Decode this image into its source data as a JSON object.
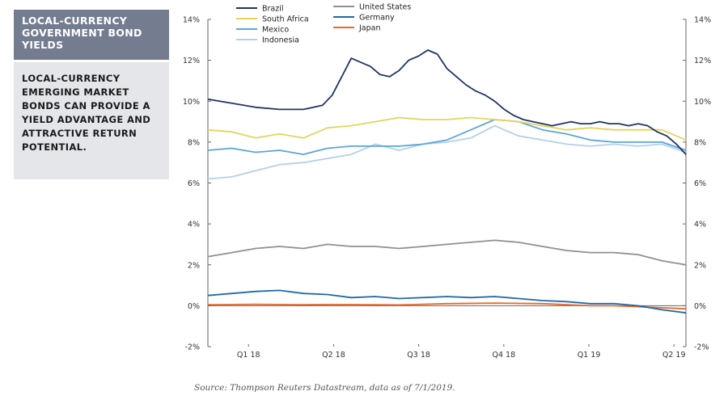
{
  "sidebar": {
    "title": "LOCAL-CURRENCY\nGOVERNMENT BOND\nYIELDS",
    "description": "LOCAL-CURRENCY\nEMERGING MARKET\nBONDS CAN PROVIDE A\nYIELD ADVANTAGE AND\nATTRACTIVE RETURN\nPOTENTIAL."
  },
  "source": "Source: Thompson Reuters Datastream, data as of 7/1/2019.",
  "chart_data": {
    "type": "line",
    "title": "",
    "xlabel": "",
    "ylabel": "",
    "ylim": [
      -2,
      14
    ],
    "y_ticks": [
      "-2%",
      "0%",
      "2%",
      "4%",
      "6%",
      "8%",
      "10%",
      "12%",
      "14%"
    ],
    "y_tick_values": [
      -2,
      0,
      2,
      4,
      6,
      8,
      10,
      12,
      14
    ],
    "x_tick_labels": [
      "Q1 18",
      "Q2 18",
      "Q3 18",
      "Q4 18",
      "Q1 19",
      "Q2 19"
    ],
    "xlim": [
      0,
      1
    ],
    "grid": false,
    "legend": "top",
    "series": [
      {
        "name": "Brazil",
        "color": "#1f3563",
        "x": [
          0,
          0.05,
          0.1,
          0.15,
          0.2,
          0.24,
          0.26,
          0.28,
          0.3,
          0.32,
          0.34,
          0.36,
          0.38,
          0.4,
          0.42,
          0.44,
          0.46,
          0.48,
          0.5,
          0.52,
          0.54,
          0.56,
          0.58,
          0.6,
          0.62,
          0.64,
          0.66,
          0.68,
          0.7,
          0.72,
          0.74,
          0.76,
          0.78,
          0.8,
          0.82,
          0.84,
          0.86,
          0.88,
          0.9,
          0.92,
          0.94,
          0.96,
          0.98,
          1.0
        ],
        "values": [
          10.1,
          9.9,
          9.7,
          9.6,
          9.6,
          9.8,
          10.3,
          11.2,
          12.1,
          11.9,
          11.7,
          11.3,
          11.2,
          11.5,
          12.0,
          12.2,
          12.5,
          12.3,
          11.6,
          11.2,
          10.8,
          10.5,
          10.3,
          10.0,
          9.6,
          9.3,
          9.1,
          9.0,
          8.9,
          8.8,
          8.9,
          9.0,
          8.9,
          8.9,
          9.0,
          8.9,
          8.9,
          8.8,
          8.9,
          8.8,
          8.5,
          8.3,
          7.9,
          7.4
        ]
      },
      {
        "name": "South Africa",
        "color": "#e3d55a",
        "x": [
          0,
          0.05,
          0.1,
          0.15,
          0.2,
          0.25,
          0.3,
          0.35,
          0.4,
          0.45,
          0.5,
          0.55,
          0.6,
          0.65,
          0.7,
          0.75,
          0.8,
          0.85,
          0.9,
          0.95,
          1.0
        ],
        "values": [
          8.6,
          8.5,
          8.2,
          8.4,
          8.2,
          8.7,
          8.8,
          9.0,
          9.2,
          9.1,
          9.1,
          9.2,
          9.1,
          9.0,
          8.8,
          8.6,
          8.7,
          8.6,
          8.6,
          8.6,
          8.1
        ]
      },
      {
        "name": "Mexico",
        "color": "#5aa6da",
        "x": [
          0,
          0.05,
          0.1,
          0.15,
          0.2,
          0.25,
          0.3,
          0.35,
          0.4,
          0.45,
          0.5,
          0.55,
          0.6,
          0.65,
          0.7,
          0.75,
          0.8,
          0.85,
          0.9,
          0.95,
          1.0
        ],
        "values": [
          7.6,
          7.7,
          7.5,
          7.6,
          7.4,
          7.7,
          7.8,
          7.8,
          7.8,
          7.9,
          8.1,
          8.6,
          9.1,
          9.0,
          8.6,
          8.4,
          8.1,
          8.0,
          8.0,
          8.0,
          7.6
        ]
      },
      {
        "name": "Indonesia",
        "color": "#b3d0ea",
        "x": [
          0,
          0.05,
          0.1,
          0.15,
          0.2,
          0.25,
          0.3,
          0.35,
          0.4,
          0.45,
          0.5,
          0.55,
          0.6,
          0.65,
          0.7,
          0.75,
          0.8,
          0.85,
          0.9,
          0.95,
          1.0
        ],
        "values": [
          6.2,
          6.3,
          6.6,
          6.9,
          7.0,
          7.2,
          7.4,
          7.9,
          7.6,
          7.9,
          8.0,
          8.2,
          8.8,
          8.3,
          8.1,
          7.9,
          7.8,
          7.9,
          7.8,
          7.9,
          7.5
        ]
      },
      {
        "name": "United States",
        "color": "#8f8f96",
        "x": [
          0,
          0.05,
          0.1,
          0.15,
          0.2,
          0.25,
          0.3,
          0.35,
          0.4,
          0.45,
          0.5,
          0.55,
          0.6,
          0.65,
          0.7,
          0.75,
          0.8,
          0.85,
          0.9,
          0.95,
          1.0
        ],
        "values": [
          2.4,
          2.6,
          2.8,
          2.9,
          2.8,
          3.0,
          2.9,
          2.9,
          2.8,
          2.9,
          3.0,
          3.1,
          3.2,
          3.1,
          2.9,
          2.7,
          2.6,
          2.6,
          2.5,
          2.2,
          2.0
        ]
      },
      {
        "name": "Germany",
        "color": "#1f6aa8",
        "x": [
          0,
          0.05,
          0.1,
          0.15,
          0.2,
          0.25,
          0.3,
          0.35,
          0.4,
          0.45,
          0.5,
          0.55,
          0.6,
          0.65,
          0.7,
          0.75,
          0.8,
          0.85,
          0.9,
          0.95,
          1.0
        ],
        "values": [
          0.5,
          0.6,
          0.7,
          0.75,
          0.6,
          0.55,
          0.4,
          0.45,
          0.35,
          0.4,
          0.45,
          0.4,
          0.45,
          0.35,
          0.25,
          0.2,
          0.1,
          0.1,
          0.0,
          -0.2,
          -0.35
        ]
      },
      {
        "name": "Japan",
        "color": "#e8692a",
        "x": [
          0,
          0.1,
          0.2,
          0.3,
          0.4,
          0.5,
          0.6,
          0.7,
          0.8,
          0.85,
          0.9,
          0.95,
          1.0
        ],
        "values": [
          0.05,
          0.07,
          0.05,
          0.06,
          0.04,
          0.1,
          0.13,
          0.1,
          0.0,
          0.0,
          -0.05,
          -0.1,
          -0.15
        ]
      }
    ]
  }
}
